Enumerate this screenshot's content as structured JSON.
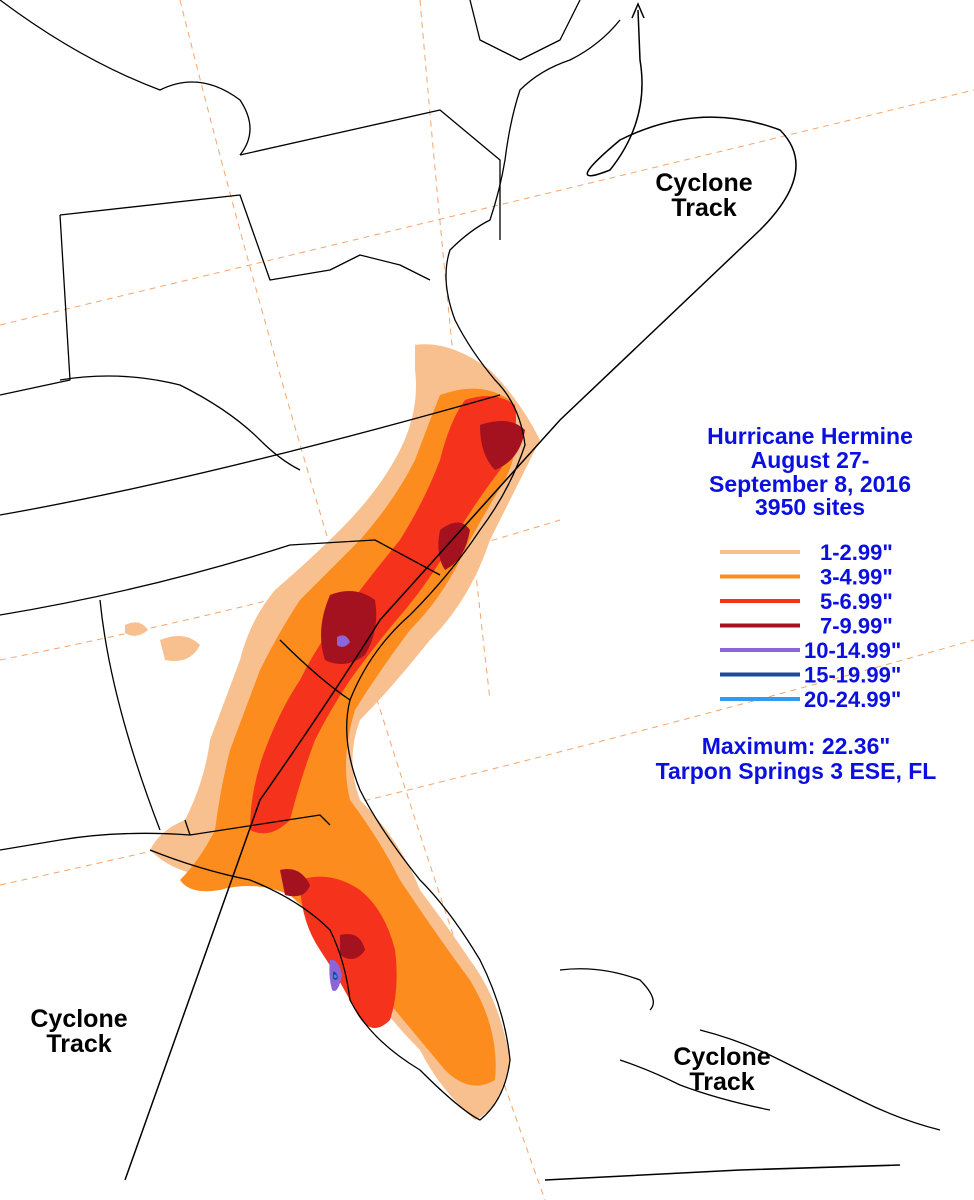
{
  "title": {
    "line1": "Hurricane Hermine",
    "line2": "August 27-",
    "line3": "September 8, 2016",
    "line4": "3950 sites"
  },
  "legend": [
    {
      "label": "1-2.99\"",
      "color": "#f9c08f"
    },
    {
      "label": "3-4.99\"",
      "color": "#fb8c1d"
    },
    {
      "label": "5-6.99\"",
      "color": "#f5321c"
    },
    {
      "label": "7-9.99\"",
      "color": "#a5121f"
    },
    {
      "label": "10-14.99\"",
      "color": "#8a66d8"
    },
    {
      "label": "15-19.99\"",
      "color": "#1c4a9c"
    },
    {
      "label": "20-24.99\"",
      "color": "#3599ee"
    }
  ],
  "maximum": {
    "line1": "Maximum:  22.36\"",
    "line2": "Tarpon Springs 3 ESE, FL"
  },
  "track_labels": {
    "northeast": {
      "line1": "Cyclone",
      "line2": "Track"
    },
    "southwest": {
      "line1": "Cyclone",
      "line2": "Track"
    },
    "southeast": {
      "line1": "Cyclone",
      "line2": "Track"
    }
  },
  "colors": {
    "border": "#000000",
    "grid": "#f4a56c",
    "text": "#0b10e0"
  }
}
